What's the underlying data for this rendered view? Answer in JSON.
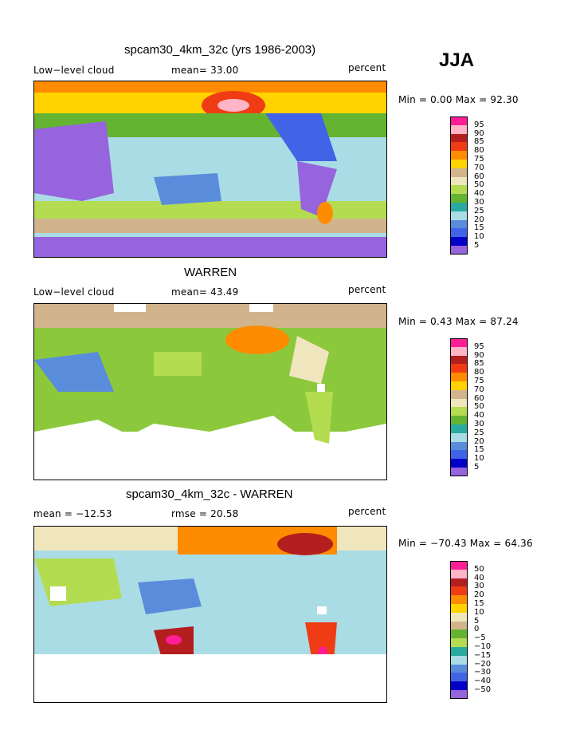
{
  "season": "JJA",
  "panels": [
    {
      "id": "model",
      "title": "spcam30_4km_32c (yrs 1986-2003)",
      "left_label": "Low−level cloud",
      "mid_label": "mean=  33.00",
      "units": "percent",
      "minmax": "Min =    0.00 Max =   92.30",
      "legend_ticks": [
        "95",
        "90",
        "85",
        "80",
        "75",
        "70",
        "60",
        "50",
        "40",
        "30",
        "25",
        "20",
        "15",
        "10",
        "5"
      ],
      "legend_colors": [
        "#ff1e96",
        "#ffb4c8",
        "#b41e1e",
        "#f03c14",
        "#ff8c00",
        "#ffd200",
        "#d2b48c",
        "#f0e6be",
        "#b4dc50",
        "#64b432",
        "#28aaa0",
        "#aadce6",
        "#5a8cdc",
        "#4164e6",
        "#0000c8",
        "#9664dc"
      ],
      "dominant": "#b4dc50"
    },
    {
      "id": "obs",
      "title": "WARREN",
      "left_label": "Low−level cloud",
      "mid_label": "mean=  43.49",
      "units": "percent",
      "minmax": "Min =    0.43 Max =   87.24",
      "legend_ticks": [
        "95",
        "90",
        "85",
        "80",
        "75",
        "70",
        "60",
        "50",
        "40",
        "30",
        "25",
        "20",
        "15",
        "10",
        "5"
      ],
      "legend_colors": [
        "#ff1e96",
        "#ffb4c8",
        "#b41e1e",
        "#f03c14",
        "#ff8c00",
        "#ffd200",
        "#d2b48c",
        "#f0e6be",
        "#b4dc50",
        "#64b432",
        "#28aaa0",
        "#aadce6",
        "#5a8cdc",
        "#4164e6",
        "#0000c8",
        "#9664dc"
      ],
      "dominant": "#8cc83c"
    },
    {
      "id": "diff",
      "title": "spcam30_4km_32c - WARREN",
      "left_label": "mean = −12.53",
      "mid_label": "rmse =  20.58",
      "units": "percent",
      "minmax": "Min = −70.43 Max =   64.36",
      "legend_ticks": [
        "50",
        "40",
        "30",
        "20",
        "15",
        "10",
        "5",
        "0",
        "−5",
        "−10",
        "−15",
        "−20",
        "−30",
        "−40",
        "−50"
      ],
      "legend_colors": [
        "#ff1e96",
        "#ffb4c8",
        "#b41e1e",
        "#f03c14",
        "#ff8c00",
        "#ffd200",
        "#f0e6be",
        "#d2b48c",
        "#64b432",
        "#b4dc50",
        "#28aaa0",
        "#aadce6",
        "#5a8cdc",
        "#4164e6",
        "#0000c8",
        "#9664dc"
      ],
      "dominant": "#aadce6"
    }
  ]
}
